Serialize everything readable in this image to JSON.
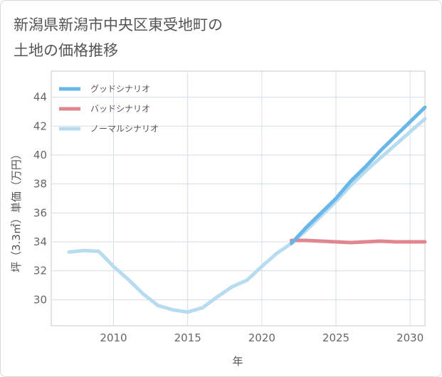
{
  "title_line1": "新潟県新潟市中央区東受地町の",
  "title_line2": "土地の価格推移",
  "colors": {
    "good": "#69b7e8",
    "bad": "#e0868f",
    "normal": "#b8dcef"
  },
  "chart_data": {
    "type": "line",
    "title": "新潟県新潟市中央区東受地町の土地の価格推移",
    "xlabel": "年",
    "ylabel": "坪（3.3㎡）単価（万円）",
    "xlim": [
      2005.8,
      2031
    ],
    "ylim": [
      28.2,
      45.8
    ],
    "x_ticks": [
      2010,
      2015,
      2020,
      2025,
      2030
    ],
    "y_ticks": [
      30,
      32,
      34,
      36,
      38,
      40,
      42,
      44
    ],
    "legend": [
      "グッドシナリオ",
      "バッドシナリオ",
      "ノーマルシナリオ"
    ],
    "legend_position": "top-left",
    "grid": true,
    "series": [
      {
        "name": "グッドシナリオ",
        "color_key": "good",
        "x": [
          2022,
          2023,
          2024,
          2025,
          2026,
          2027,
          2028,
          2029,
          2030,
          2031
        ],
        "y": [
          33.9,
          35.0,
          36.0,
          37.0,
          38.2,
          39.2,
          40.3,
          41.3,
          42.3,
          43.3
        ]
      },
      {
        "name": "バッドシナリオ",
        "color_key": "bad",
        "x": [
          2022,
          2023,
          2024,
          2025,
          2026,
          2027,
          2028,
          2029,
          2030,
          2031
        ],
        "y": [
          34.1,
          34.1,
          34.05,
          34.0,
          33.95,
          34.0,
          34.05,
          34.0,
          34.0,
          34.0
        ]
      },
      {
        "name": "ノーマルシナリオ",
        "color_key": "normal",
        "x": [
          2007,
          2008,
          2009,
          2010,
          2011,
          2012,
          2013,
          2014,
          2015,
          2016,
          2017,
          2018,
          2019,
          2020,
          2021,
          2022,
          2023,
          2024,
          2025,
          2026,
          2027,
          2028,
          2029,
          2030,
          2031
        ],
        "y": [
          33.3,
          33.4,
          33.35,
          32.3,
          31.4,
          30.4,
          29.6,
          29.3,
          29.15,
          29.45,
          30.2,
          30.9,
          31.35,
          32.3,
          33.2,
          33.9,
          34.8,
          35.8,
          36.8,
          37.9,
          38.9,
          39.8,
          40.7,
          41.6,
          42.5
        ]
      }
    ]
  }
}
